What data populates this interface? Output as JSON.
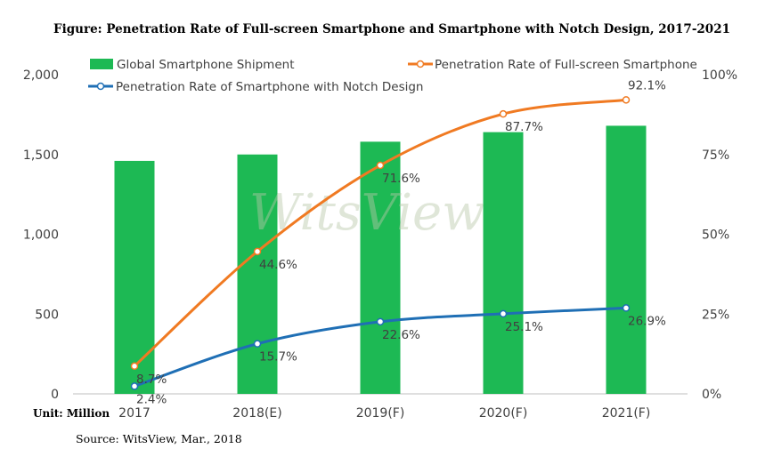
{
  "chart_data": {
    "type": "bar",
    "title": "Figure: Penetration Rate of Full-screen Smartphone and Smartphone with Notch Design, 2017-2021",
    "categories": [
      "2017",
      "2018(E)",
      "2019(F)",
      "2020(F)",
      "2021(F)"
    ],
    "y_left": {
      "ticks": [
        "0",
        "500",
        "1,000",
        "1,500",
        "2,000"
      ],
      "range": [
        0,
        2000
      ],
      "unit_label": "Unit: Million"
    },
    "y_right": {
      "ticks": [
        "0%",
        "25%",
        "50%",
        "75%",
        "100%"
      ],
      "range": [
        0,
        100
      ]
    },
    "series": [
      {
        "name": "Global Smartphone Shipment",
        "kind": "bar",
        "axis": "left",
        "color": "#1db954",
        "values": [
          1460,
          1500,
          1580,
          1640,
          1680
        ]
      },
      {
        "name": "Penetration Rate of Full-screen Smartphone",
        "kind": "line",
        "axis": "right",
        "color": "#f07a22",
        "values": [
          8.7,
          44.6,
          71.6,
          87.7,
          92.1
        ],
        "labels": [
          "8.7%",
          "44.6%",
          "71.6%",
          "87.7%",
          "92.1%"
        ]
      },
      {
        "name": "Penetration Rate of Smartphone with Notch Design",
        "kind": "line",
        "axis": "right",
        "color": "#1f6fb5",
        "values": [
          2.4,
          15.7,
          22.6,
          25.1,
          26.9
        ],
        "labels": [
          "2.4%",
          "15.7%",
          "22.6%",
          "25.1%",
          "26.9%"
        ]
      }
    ],
    "legend_position": "top",
    "grid": false,
    "watermark": "WitsView",
    "source": "Source: WitsView, Mar., 2018"
  }
}
